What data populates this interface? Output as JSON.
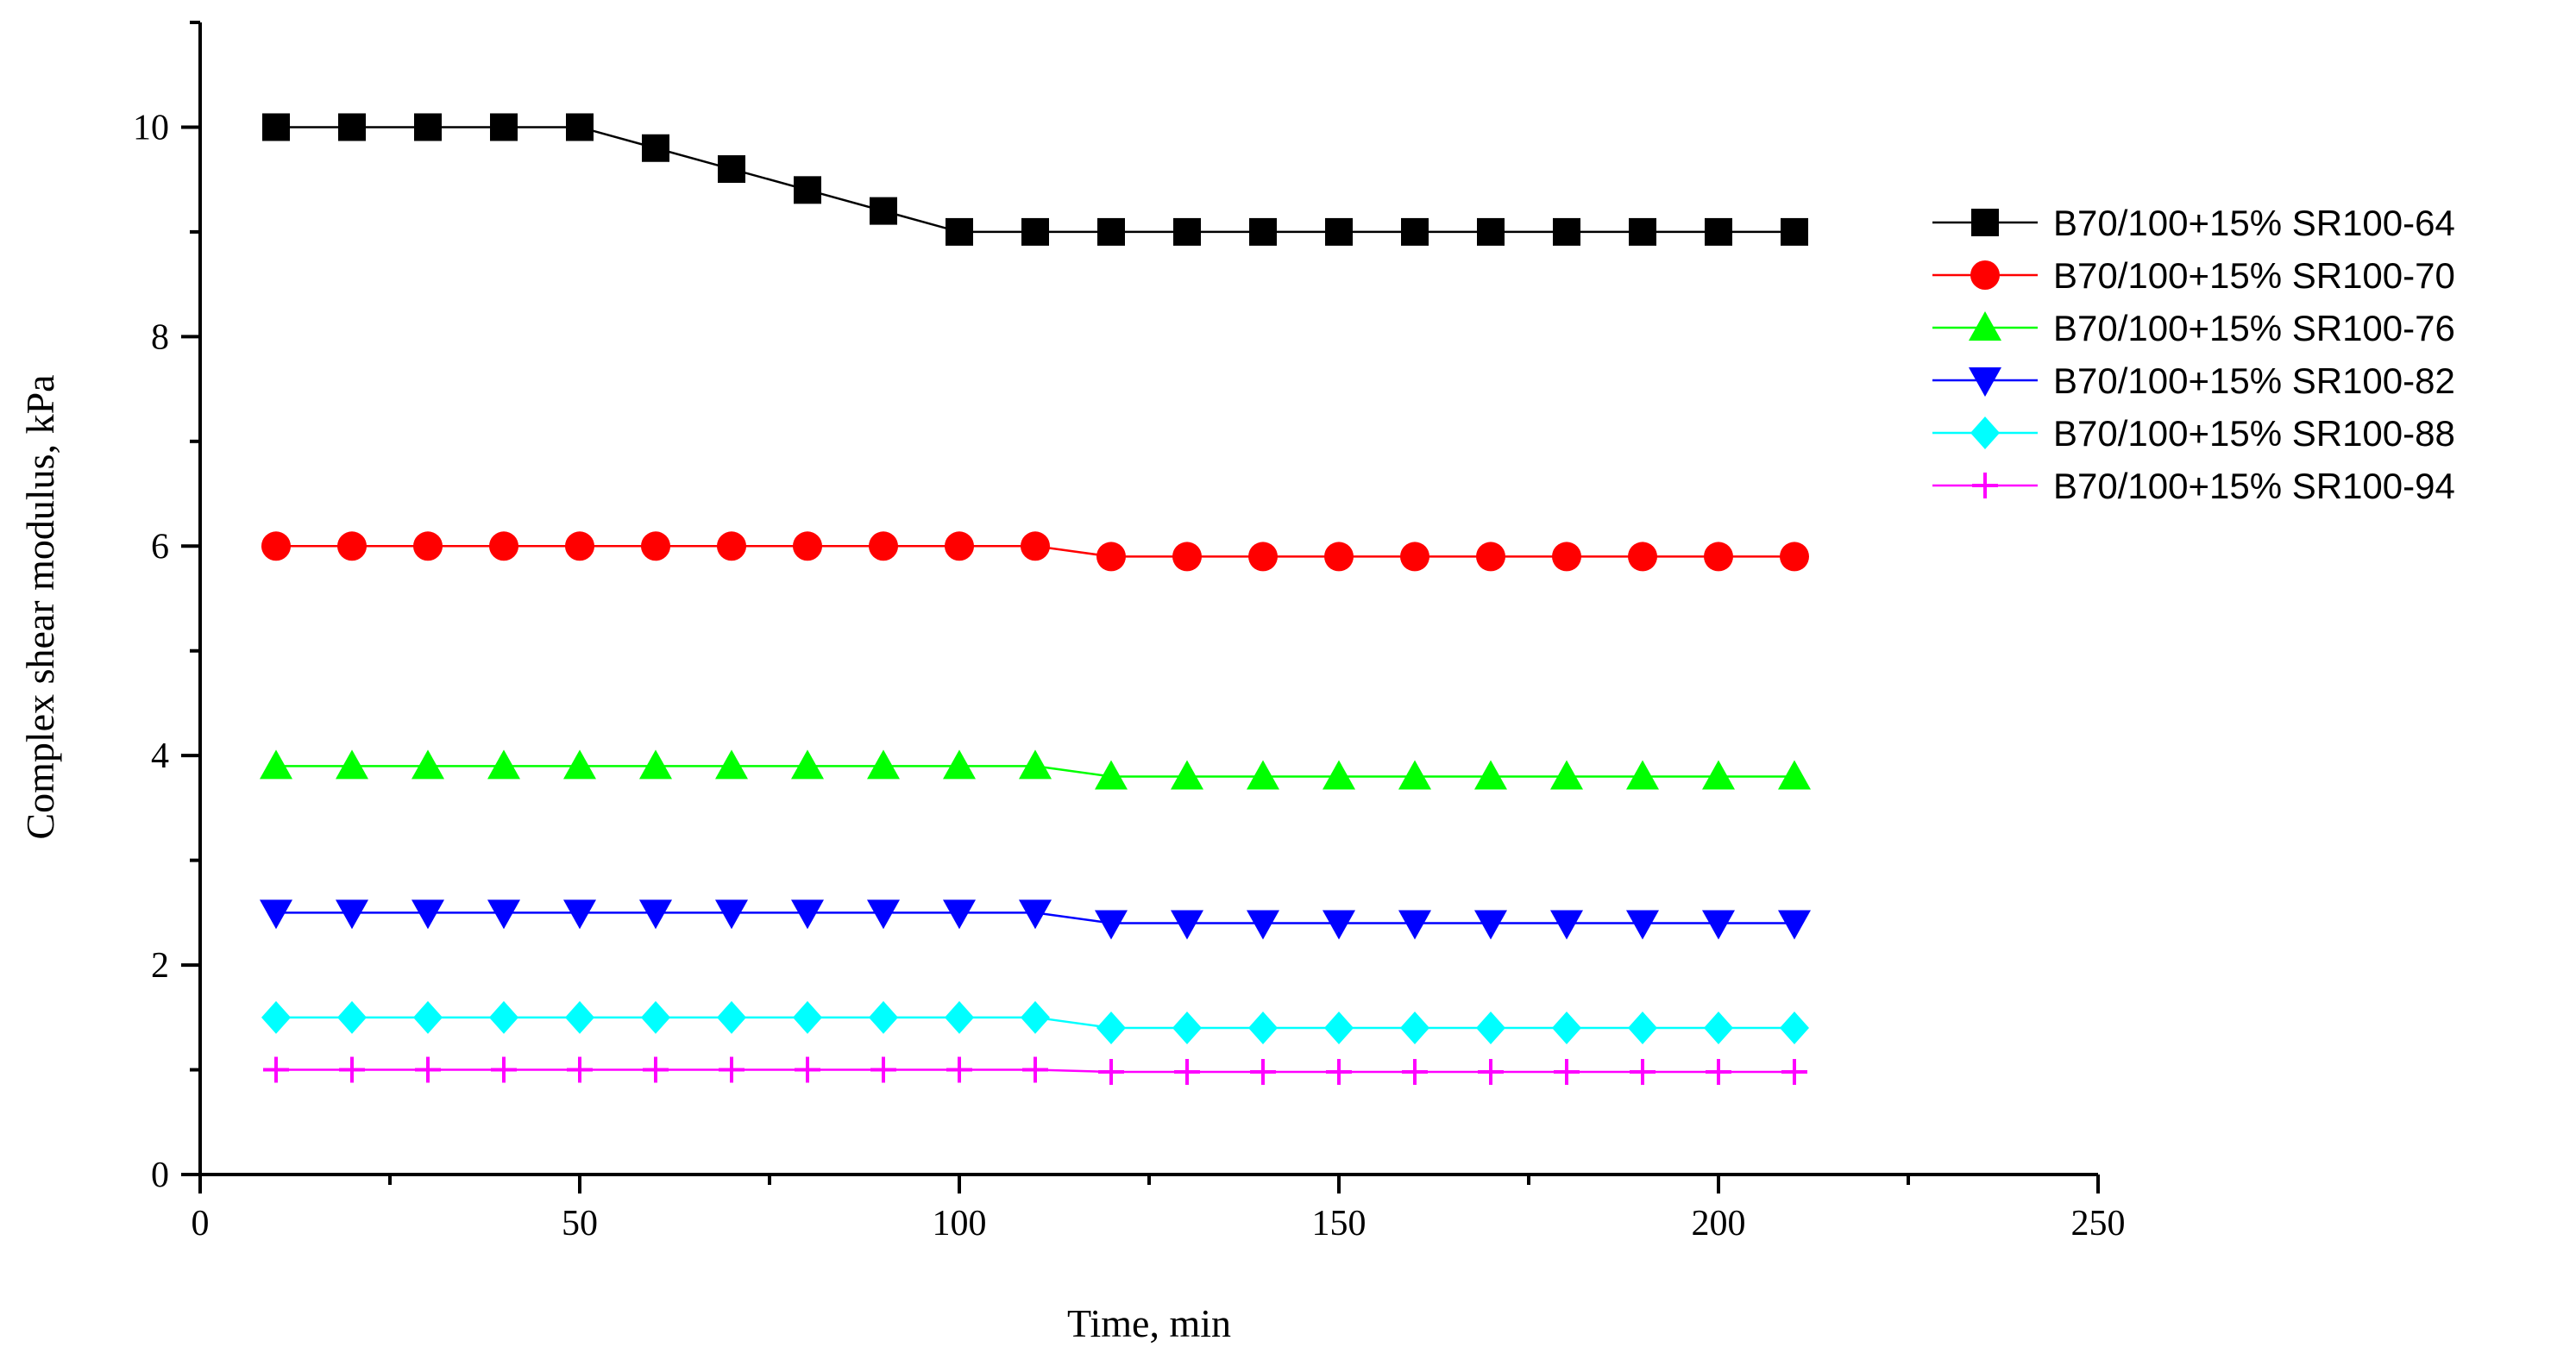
{
  "chart_data": {
    "type": "line",
    "title": "",
    "xlabel": "Time, min",
    "ylabel": "Complex shear modulus, kPa",
    "xlim": [
      0,
      250
    ],
    "ylim": [
      0,
      11
    ],
    "xticks": [
      0,
      50,
      100,
      150,
      200,
      250
    ],
    "yticks": [
      0,
      2,
      4,
      6,
      8,
      10
    ],
    "x_tick_labels": [
      "0",
      "50",
      "100",
      "150",
      "200",
      "250"
    ],
    "y_tick_labels": [
      "0",
      "2",
      "4",
      "6",
      "8",
      "10"
    ],
    "grid": false,
    "legend_position": "right",
    "x": [
      10,
      20,
      30,
      40,
      50,
      60,
      70,
      80,
      90,
      100,
      110,
      120,
      130,
      140,
      150,
      160,
      170,
      180,
      190,
      200,
      210
    ],
    "series": [
      {
        "name": "B70/100+15% SR100-64",
        "color": "#000000",
        "marker": "square",
        "values": [
          10,
          10,
          10,
          10,
          10,
          9.8,
          9.6,
          9.4,
          9.2,
          9,
          9,
          9,
          9,
          9,
          9,
          9,
          9,
          9,
          9,
          9,
          9
        ]
      },
      {
        "name": "B70/100+15% SR100-70",
        "color": "#ff0000",
        "marker": "circle",
        "values": [
          6,
          6,
          6,
          6,
          6,
          6,
          6,
          6,
          6,
          6,
          6,
          5.9,
          5.9,
          5.9,
          5.9,
          5.9,
          5.9,
          5.9,
          5.9,
          5.9,
          5.9
        ]
      },
      {
        "name": "B70/100+15% SR100-76",
        "color": "#00ff00",
        "marker": "triangle-up",
        "values": [
          3.9,
          3.9,
          3.9,
          3.9,
          3.9,
          3.9,
          3.9,
          3.9,
          3.9,
          3.9,
          3.9,
          3.8,
          3.8,
          3.8,
          3.8,
          3.8,
          3.8,
          3.8,
          3.8,
          3.8,
          3.8
        ]
      },
      {
        "name": "B70/100+15% SR100-82",
        "color": "#0000ff",
        "marker": "triangle-down",
        "values": [
          2.5,
          2.5,
          2.5,
          2.5,
          2.5,
          2.5,
          2.5,
          2.5,
          2.5,
          2.5,
          2.5,
          2.4,
          2.4,
          2.4,
          2.4,
          2.4,
          2.4,
          2.4,
          2.4,
          2.4,
          2.4
        ]
      },
      {
        "name": "B70/100+15% SR100-88",
        "color": "#00ffff",
        "marker": "diamond",
        "values": [
          1.5,
          1.5,
          1.5,
          1.5,
          1.5,
          1.5,
          1.5,
          1.5,
          1.5,
          1.5,
          1.5,
          1.4,
          1.4,
          1.4,
          1.4,
          1.4,
          1.4,
          1.4,
          1.4,
          1.4,
          1.4
        ]
      },
      {
        "name": "B70/100+15% SR100-94",
        "color": "#ff00ff",
        "marker": "plus",
        "values": [
          1,
          1,
          1,
          1,
          1,
          1,
          1,
          1,
          1,
          1,
          1,
          0.98,
          0.98,
          0.98,
          0.98,
          0.98,
          0.98,
          0.98,
          0.98,
          0.98,
          0.98
        ]
      }
    ]
  }
}
